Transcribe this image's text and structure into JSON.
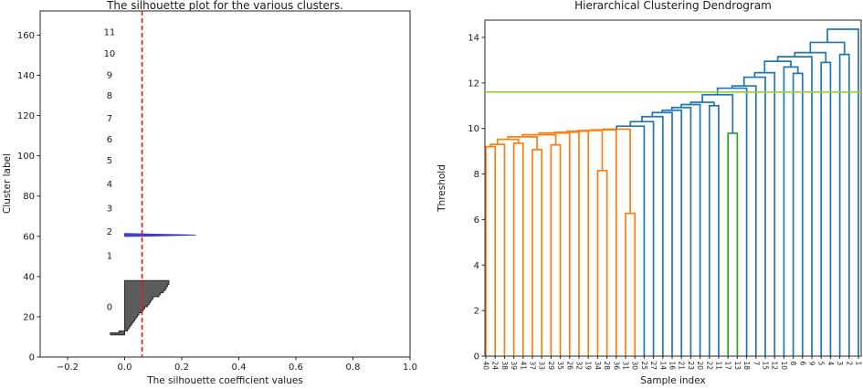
{
  "figure": {
    "background": "#ffffff"
  },
  "chart_data": [
    {
      "type": "area",
      "subtype": "silhouette",
      "title": "The silhouette plot for the various clusters.",
      "xlabel": "The silhouette coefficient values",
      "ylabel": "Cluster label",
      "xlim": [
        -0.296,
        1.0
      ],
      "ylim": [
        0,
        172
      ],
      "grid": false,
      "legend": "none",
      "xticks": {
        "labels": [
          "−0.2",
          "0.0",
          "0.2",
          "0.4",
          "0.6",
          "0.8",
          "1.0"
        ],
        "values": [
          -0.2,
          0.0,
          0.2,
          0.4,
          0.6,
          0.8,
          1.0
        ]
      },
      "yticks": [
        0,
        20,
        40,
        60,
        80,
        100,
        120,
        140,
        160
      ],
      "avg_silhouette_line": {
        "x": 0.061,
        "color": "#ee1111",
        "style": "dashed"
      },
      "cluster_labels": [
        {
          "text": "0",
          "y": 25.0
        },
        {
          "text": "1",
          "y": 50.3
        },
        {
          "text": "2",
          "y": 62.3
        },
        {
          "text": "3",
          "y": 74.0
        },
        {
          "text": "4",
          "y": 86.0
        },
        {
          "text": "5",
          "y": 97.7
        },
        {
          "text": "6",
          "y": 108.2
        },
        {
          "text": "7",
          "y": 118.6
        },
        {
          "text": "8",
          "y": 130.0
        },
        {
          "text": "9",
          "y": 140.3
        },
        {
          "text": "10",
          "y": 151.0
        },
        {
          "text": "11",
          "y": 161.5
        }
      ],
      "cluster0_band": {
        "y_start": 11,
        "fill": "#4a4a4a",
        "edge": "#2b2b2b",
        "values": [
          -0.05,
          -0.02,
          0.01,
          0.015,
          0.02,
          0.025,
          0.03,
          0.035,
          0.04,
          0.045,
          0.05,
          0.06,
          0.065,
          0.07,
          0.08,
          0.085,
          0.09,
          0.095,
          0.1,
          0.12,
          0.125,
          0.135,
          0.142,
          0.146,
          0.15,
          0.155,
          0.155
        ]
      },
      "cluster2_band": {
        "fill": "#3d39cf",
        "edge": "#2b28a8",
        "polygon": [
          [
            0.0,
            59.9
          ],
          [
            0.0,
            61.4
          ],
          [
            0.09,
            61.15
          ],
          [
            0.25,
            60.65
          ],
          [
            0.09,
            60.1
          ]
        ]
      }
    },
    {
      "type": "line",
      "subtype": "dendrogram",
      "title": "Hierarchical Clustering Dendrogram",
      "xlabel": "Sample index",
      "ylabel": "Threshold",
      "ylim": [
        0,
        14.76
      ],
      "grid": false,
      "legend": "none",
      "yticks": [
        0,
        2,
        4,
        6,
        8,
        10,
        12,
        14
      ],
      "threshold_line": {
        "y": 11.6,
        "color": "#9acd32"
      },
      "link_colors": {
        "o": "#ff7f0e",
        "b": "#1f77b4",
        "g": "#2ca02c"
      },
      "leaves": [
        "40",
        "24",
        "38",
        "39",
        "41",
        "37",
        "33",
        "29",
        "35",
        "26",
        "32",
        "19",
        "34",
        "28",
        "36",
        "31",
        "30",
        "25",
        "27",
        "14",
        "16",
        "21",
        "23",
        "20",
        "22",
        "11",
        "17",
        "13",
        "18",
        "7",
        "15",
        "12",
        "10",
        "8",
        "6",
        "9",
        "5",
        "4",
        "3",
        "2",
        "1"
      ],
      "merges": [
        [
          "L1",
          "L2",
          9.2,
          "o"
        ],
        [
          "M1",
          "L3",
          9.3,
          "o"
        ],
        [
          "L4",
          "L5",
          9.35,
          "o"
        ],
        [
          "M2",
          "M3",
          9.52,
          "o"
        ],
        [
          "L6",
          "L7",
          9.07,
          "o"
        ],
        [
          "M4",
          "M5",
          9.63,
          "o"
        ],
        [
          "L8",
          "L9",
          9.28,
          "o"
        ],
        [
          "M6",
          "M7",
          9.72,
          "o"
        ],
        [
          "M8",
          "L10",
          9.8,
          "o"
        ],
        [
          "M9",
          "L11",
          9.84,
          "o"
        ],
        [
          "M10",
          "L12",
          9.88,
          "o"
        ],
        [
          "L13",
          "L14",
          8.15,
          "o"
        ],
        [
          "M11",
          "M12",
          9.91,
          "o"
        ],
        [
          "M13",
          "L15",
          9.94,
          "o"
        ],
        [
          "L16",
          "L17",
          6.27,
          "o"
        ],
        [
          "M14",
          "M15",
          9.97,
          "o"
        ],
        [
          "M16",
          "L18",
          10.1,
          "b"
        ],
        [
          "M17",
          "L19",
          10.3,
          "b"
        ],
        [
          "M18",
          "L20",
          10.52,
          "b"
        ],
        [
          "M19",
          "L21",
          10.7,
          "b"
        ],
        [
          "M20",
          "L22",
          10.8,
          "b"
        ],
        [
          "M21",
          "L23",
          10.92,
          "b"
        ],
        [
          "M22",
          "L24",
          11.05,
          "b"
        ],
        [
          "L25",
          "L26",
          11.0,
          "b"
        ],
        [
          "M23",
          "M24",
          11.15,
          "b"
        ],
        [
          "L27",
          "L28",
          9.79,
          "g"
        ],
        [
          "M25",
          "M26",
          11.48,
          "b"
        ],
        [
          "M27",
          "L29",
          11.77,
          "b"
        ],
        [
          "M28",
          "L30",
          11.87,
          "b"
        ],
        [
          "M29",
          "L31",
          12.25,
          "b"
        ],
        [
          "M30",
          "L32",
          12.45,
          "b"
        ],
        [
          "L34",
          "L35",
          12.42,
          "b"
        ],
        [
          "L33",
          "M32",
          12.7,
          "b"
        ],
        [
          "M31",
          "M33",
          12.95,
          "b"
        ],
        [
          "M34",
          "L36",
          13.15,
          "b"
        ],
        [
          "L37",
          "L38",
          12.9,
          "b"
        ],
        [
          "M35",
          "M36",
          13.33,
          "b"
        ],
        [
          "L39",
          "L40",
          13.25,
          "b"
        ],
        [
          "M37",
          "M38",
          13.78,
          "b"
        ],
        [
          "M39",
          "L41",
          14.36,
          "b"
        ]
      ]
    }
  ]
}
